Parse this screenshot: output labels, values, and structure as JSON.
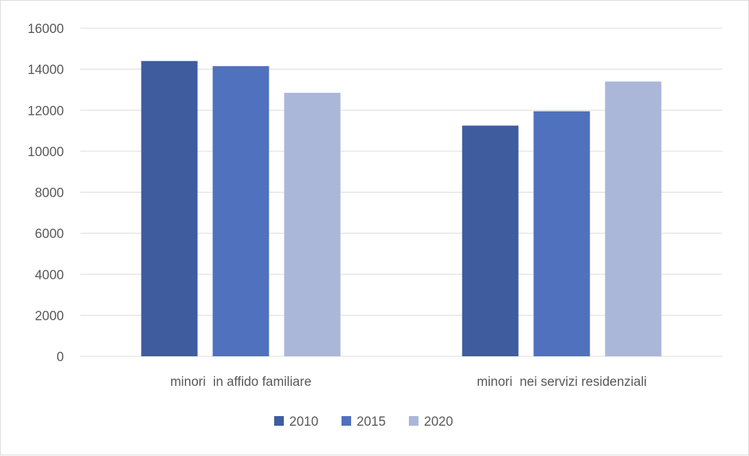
{
  "chart_data": {
    "type": "bar",
    "categories": [
      "minori  in affido familiare",
      "minori  nei servizi residenziali"
    ],
    "series": [
      {
        "name": "2010",
        "values": [
          14400,
          11250
        ],
        "color": "#3f5c9f"
      },
      {
        "name": "2015",
        "values": [
          14150,
          11950
        ],
        "color": "#4f71be"
      },
      {
        "name": "2020",
        "values": [
          12850,
          13400
        ],
        "color": "#aab7d9"
      }
    ],
    "ylim": [
      0,
      16000
    ],
    "y_ticks": [
      0,
      2000,
      4000,
      6000,
      8000,
      10000,
      12000,
      14000,
      16000
    ],
    "grid": true,
    "legend_position": "bottom"
  }
}
